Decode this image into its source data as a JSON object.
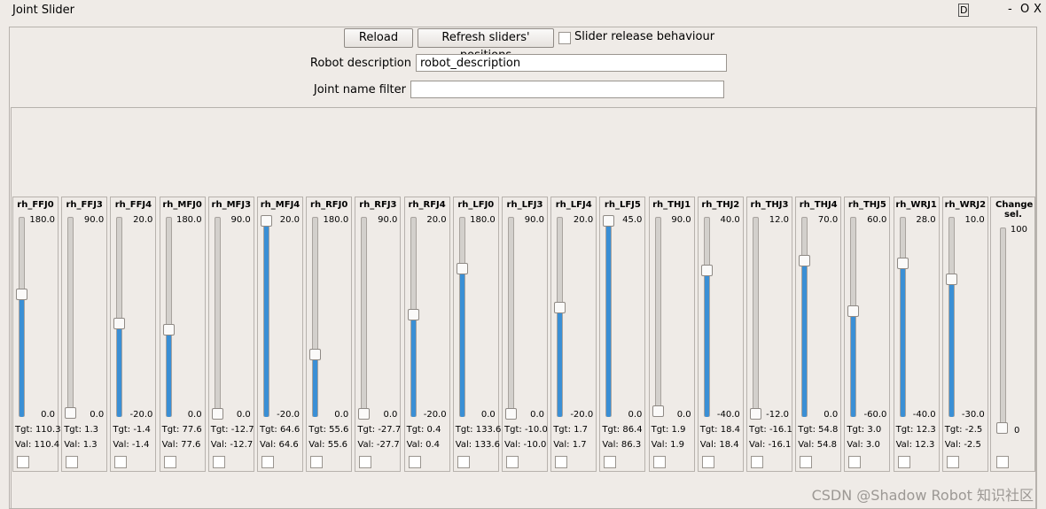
{
  "window": {
    "title": "Joint Slider",
    "help": "D",
    "minimize": "-",
    "float": "O",
    "close": "X"
  },
  "toolbar": {
    "reload": "Reload",
    "refresh": "Refresh sliders' positions",
    "release_checkbox": "Slider release behaviour",
    "robot_description_label": "Robot description",
    "robot_description_value": "robot_description",
    "joint_filter_label": "Joint name filter"
  },
  "labels": {
    "tgt": "Tgt:",
    "val": "Val:"
  },
  "joints": [
    {
      "name": "rh_FFJ0",
      "max": "180.0",
      "min": "0.0",
      "tgt": "110.3",
      "val": "110.4"
    },
    {
      "name": "rh_FFJ3",
      "max": "90.0",
      "min": "0.0",
      "tgt": "1.3",
      "val": "1.3"
    },
    {
      "name": "rh_FFJ4",
      "max": "20.0",
      "min": "-20.0",
      "tgt": "-1.4",
      "val": "-1.4"
    },
    {
      "name": "rh_MFJ0",
      "max": "180.0",
      "min": "0.0",
      "tgt": "77.6",
      "val": "77.6"
    },
    {
      "name": "rh_MFJ3",
      "max": "90.0",
      "min": "0.0",
      "tgt": "-12.7",
      "val": "-12.7"
    },
    {
      "name": "rh_MFJ4",
      "max": "20.0",
      "min": "-20.0",
      "tgt": "64.6",
      "val": "64.6"
    },
    {
      "name": "rh_RFJ0",
      "max": "180.0",
      "min": "0.0",
      "tgt": "55.6",
      "val": "55.6"
    },
    {
      "name": "rh_RFJ3",
      "max": "90.0",
      "min": "0.0",
      "tgt": "-27.7",
      "val": "-27.7"
    },
    {
      "name": "rh_RFJ4",
      "max": "20.0",
      "min": "-20.0",
      "tgt": "0.4",
      "val": "0.4"
    },
    {
      "name": "rh_LFJ0",
      "max": "180.0",
      "min": "0.0",
      "tgt": "133.6",
      "val": "133.6"
    },
    {
      "name": "rh_LFJ3",
      "max": "90.0",
      "min": "0.0",
      "tgt": "-10.0",
      "val": "-10.0"
    },
    {
      "name": "rh_LFJ4",
      "max": "20.0",
      "min": "-20.0",
      "tgt": "1.7",
      "val": "1.7"
    },
    {
      "name": "rh_LFJ5",
      "max": "45.0",
      "min": "0.0",
      "tgt": "86.4",
      "val": "86.3"
    },
    {
      "name": "rh_THJ1",
      "max": "90.0",
      "min": "0.0",
      "tgt": "1.9",
      "val": "1.9"
    },
    {
      "name": "rh_THJ2",
      "max": "40.0",
      "min": "-40.0",
      "tgt": "18.4",
      "val": "18.4"
    },
    {
      "name": "rh_THJ3",
      "max": "12.0",
      "min": "-12.0",
      "tgt": "-16.1",
      "val": "-16.1"
    },
    {
      "name": "rh_THJ4",
      "max": "70.0",
      "min": "0.0",
      "tgt": "54.8",
      "val": "54.8"
    },
    {
      "name": "rh_THJ5",
      "max": "60.0",
      "min": "-60.0",
      "tgt": "3.0",
      "val": "3.0"
    },
    {
      "name": "rh_WRJ1",
      "max": "28.0",
      "min": "-40.0",
      "tgt": "12.3",
      "val": "12.3"
    },
    {
      "name": "rh_WRJ2",
      "max": "10.0",
      "min": "-30.0",
      "tgt": "-2.5",
      "val": "-2.5"
    }
  ],
  "change_sel": {
    "name": "Change sel.",
    "max": "100",
    "min": "0"
  },
  "watermark": "CSDN @Shadow Robot 知识社区"
}
